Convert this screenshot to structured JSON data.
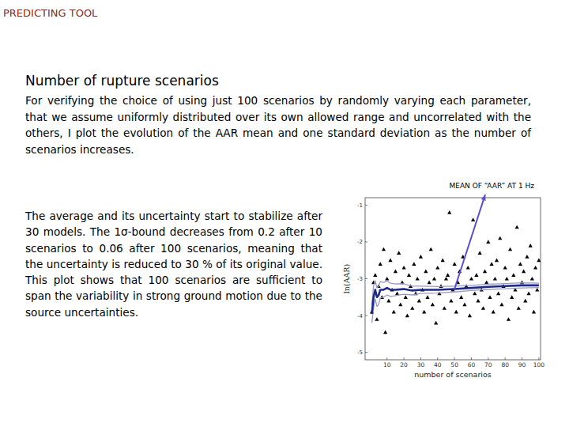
{
  "slide": {
    "header": "PREDICTING TOOL",
    "title": "Number of rupture scenarios",
    "intro": "For verifying the choice of using just 100 scenarios by randomly varying each parameter, that we assume uniformly distributed over its own allowed range and uncorrelated with the others, I plot the evolution of the AAR mean and one standard deviation as the number of scenarios increases.",
    "body": "The average and its uncertainty start to stabilize after 30 models. The 1σ-bound decreases from 0.2 after 10 scenarios to 0.06 after 100 scenarios, meaning that the uncertainty is reduced to 30 % of its original value. This plot shows that 100 scenarios are sufficient to span the variability in strong ground motion due to the source uncertainties."
  },
  "chart_data": {
    "type": "scatter",
    "annotation": "MEAN OF “AAR” AT 1 Hz",
    "x_label": "number of scenarios",
    "y_label": "ln(AAR)",
    "xlim": [
      -3,
      101
    ],
    "ylim": [
      -5.2,
      -0.8
    ],
    "xticks": [
      10,
      20,
      30,
      40,
      50,
      60,
      70,
      80,
      90,
      100
    ],
    "yticks": [
      -1,
      -2,
      -3,
      -4,
      -5
    ],
    "series": [
      {
        "type": "scatter",
        "marker": "triangle",
        "color": "#000000",
        "x": [
          1,
          2,
          3,
          4,
          5,
          6,
          7,
          8,
          9,
          10,
          11,
          12,
          13,
          14,
          15,
          16,
          17,
          18,
          19,
          20,
          21,
          22,
          23,
          24,
          25,
          26,
          27,
          28,
          29,
          30,
          31,
          32,
          33,
          34,
          35,
          36,
          37,
          38,
          39,
          40,
          41,
          42,
          43,
          44,
          45,
          46,
          47,
          48,
          49,
          50,
          51,
          52,
          53,
          54,
          55,
          56,
          57,
          58,
          59,
          60,
          61,
          62,
          63,
          64,
          65,
          66,
          67,
          68,
          69,
          70,
          71,
          72,
          73,
          74,
          75,
          76,
          77,
          78,
          79,
          80,
          81,
          82,
          83,
          84,
          85,
          86,
          87,
          88,
          89,
          90,
          91,
          92,
          93,
          94,
          95,
          96,
          97,
          98,
          99,
          100
        ],
        "values": [
          -3.9,
          -3.1,
          -2.9,
          -4.1,
          -3.2,
          -2.6,
          -3.5,
          -2.2,
          -4.45,
          -3.0,
          -3.6,
          -2.5,
          -3.3,
          -3.9,
          -2.8,
          -3.4,
          -2.3,
          -3.7,
          -3.1,
          -2.7,
          -3.5,
          -4.0,
          -2.9,
          -3.2,
          -3.8,
          -2.6,
          -3.4,
          -3.0,
          -3.6,
          -2.4,
          -3.3,
          -3.9,
          -2.8,
          -3.5,
          -3.1,
          -2.2,
          -3.7,
          -3.0,
          -4.2,
          -2.7,
          -3.4,
          -3.2,
          -2.5,
          -3.8,
          -3.0,
          -2.9,
          -1.2,
          -3.6,
          -3.3,
          -2.6,
          -3.9,
          -3.1,
          -2.8,
          -3.5,
          -2.4,
          -3.7,
          -3.2,
          -2.7,
          -4.0,
          -3.0,
          -1.4,
          -3.4,
          -2.9,
          -3.6,
          -2.3,
          -3.3,
          -3.8,
          -2.8,
          -3.1,
          -2.0,
          -3.5,
          -2.6,
          -3.9,
          -3.0,
          -2.5,
          -3.4,
          -1.9,
          -3.7,
          -3.2,
          -2.7,
          -3.0,
          -4.1,
          -2.2,
          -3.5,
          -2.9,
          -3.3,
          -1.6,
          -3.8,
          -2.6,
          -3.1,
          -2.8,
          -3.6,
          -2.4,
          -3.4,
          -2.1,
          -3.0,
          -3.9,
          -2.7,
          -3.3,
          -2.5
        ]
      },
      {
        "type": "line",
        "color": "#9a9ac8",
        "x": [
          1,
          2,
          3,
          4,
          5,
          6,
          8,
          10,
          12,
          15,
          20,
          25,
          30,
          40,
          50,
          60,
          70,
          80,
          90,
          100
        ],
        "values": [
          -3.7,
          -3.2,
          -3.05,
          -3.25,
          -3.2,
          -3.08,
          -3.1,
          -3.06,
          -3.12,
          -3.14,
          -3.14,
          -3.2,
          -3.2,
          -3.21,
          -3.2,
          -3.18,
          -3.15,
          -3.13,
          -3.11,
          -3.12
        ]
      },
      {
        "type": "line",
        "color": "#9a9ac8",
        "x": [
          1,
          2,
          3,
          4,
          5,
          6,
          8,
          10,
          12,
          15,
          20,
          25,
          30,
          40,
          50,
          60,
          70,
          80,
          90,
          100
        ],
        "values": [
          -4.2,
          -3.8,
          -3.55,
          -3.75,
          -3.7,
          -3.52,
          -3.5,
          -3.44,
          -3.48,
          -3.46,
          -3.42,
          -3.44,
          -3.4,
          -3.39,
          -3.36,
          -3.32,
          -3.29,
          -3.27,
          -3.25,
          -3.24
        ]
      },
      {
        "type": "line",
        "color": "#1e2a8a",
        "x": [
          1,
          2,
          3,
          4,
          5,
          6,
          8,
          10,
          12,
          15,
          20,
          25,
          30,
          40,
          50,
          60,
          70,
          80,
          90,
          100
        ],
        "values": [
          -3.95,
          -3.5,
          -3.3,
          -3.5,
          -3.45,
          -3.3,
          -3.3,
          -3.25,
          -3.3,
          -3.3,
          -3.28,
          -3.32,
          -3.3,
          -3.3,
          -3.28,
          -3.25,
          -3.22,
          -3.2,
          -3.18,
          -3.18
        ]
      }
    ]
  }
}
